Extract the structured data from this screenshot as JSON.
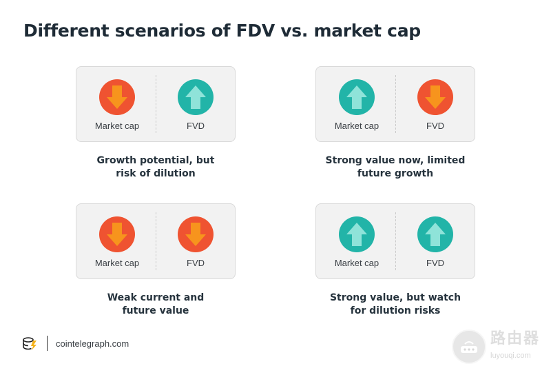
{
  "title": "Different scenarios of FDV vs. market cap",
  "colors": {
    "down": "#ef5331",
    "up": "#22b4a8",
    "down_arrow": "#f7941d",
    "up_arrow": "#8fe3d9"
  },
  "scenarios": [
    {
      "left": {
        "label": "Market cap",
        "direction": "down",
        "icon": "arrow-down-icon"
      },
      "right": {
        "label": "FVD",
        "direction": "up",
        "icon": "arrow-up-icon"
      },
      "caption": [
        "Growth potential, but",
        "risk of dilution"
      ]
    },
    {
      "left": {
        "label": "Market cap",
        "direction": "up",
        "icon": "arrow-up-icon"
      },
      "right": {
        "label": "FVD",
        "direction": "down",
        "icon": "arrow-down-icon"
      },
      "caption": [
        "Strong value now, limited",
        "future growth"
      ]
    },
    {
      "left": {
        "label": "Market cap",
        "direction": "down",
        "icon": "arrow-down-icon"
      },
      "right": {
        "label": "FVD",
        "direction": "down",
        "icon": "arrow-down-icon"
      },
      "caption": [
        "Weak current and",
        "future value"
      ]
    },
    {
      "left": {
        "label": "Market cap",
        "direction": "up",
        "icon": "arrow-up-icon"
      },
      "right": {
        "label": "FVD",
        "direction": "up",
        "icon": "arrow-up-icon"
      },
      "caption": [
        "Strong value, but watch",
        "for dilution risks"
      ]
    }
  ],
  "footer": {
    "site": "cointelegraph.com",
    "logo_icon": "cointelegraph-logo-icon"
  },
  "watermark": {
    "cn": "路由器",
    "en": "luyouqi.com",
    "icon": "router-icon"
  }
}
